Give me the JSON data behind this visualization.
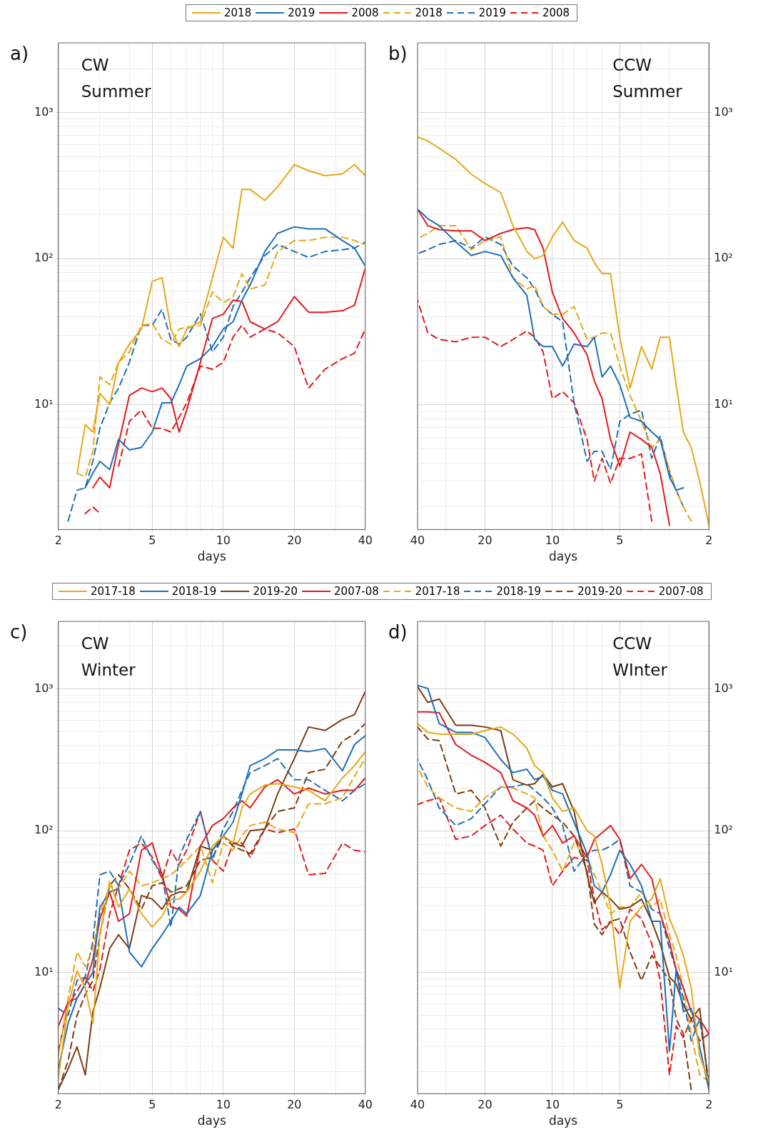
{
  "chart_data": [
    {
      "type": "line",
      "title": "a)",
      "annotations": [
        "CW",
        "Summer"
      ],
      "xlabel": "days",
      "log": "xy",
      "grid": true,
      "legend": "top",
      "x": [
        2.2,
        2.4,
        2.6,
        2.8,
        3,
        3.3,
        3.6,
        4,
        4.5,
        5,
        5.5,
        6,
        6.5,
        7,
        8,
        9,
        10,
        11,
        12,
        13,
        15,
        17,
        20,
        23,
        27,
        32,
        36,
        40
      ],
      "xlim": [
        2,
        40
      ],
      "xticks": [
        2,
        {
          "value": 3,
          "label": null
        },
        {
          "value": 4,
          "label": null
        },
        5,
        {
          "value": 6,
          "label": null
        },
        {
          "value": 7,
          "label": null
        },
        {
          "value": 8,
          "label": null
        },
        {
          "value": 9,
          "label": null
        },
        10,
        20,
        {
          "value": 30,
          "label": null
        },
        40
      ],
      "ylim": [
        1.4,
        3000
      ],
      "yticks": [
        {
          "value": 2,
          "label": null
        },
        {
          "value": 3,
          "label": null
        },
        {
          "value": 4,
          "label": null
        },
        {
          "value": 5,
          "label": null
        },
        {
          "value": 6,
          "label": null
        },
        {
          "value": 7,
          "label": null
        },
        {
          "value": 8,
          "label": null
        },
        {
          "value": 9,
          "label": null
        },
        {
          "value": 10,
          "label": "10¹"
        },
        {
          "value": 20,
          "label": null
        },
        {
          "value": 30,
          "label": null
        },
        {
          "value": 40,
          "label": null
        },
        {
          "value": 50,
          "label": null
        },
        {
          "value": 60,
          "label": null
        },
        {
          "value": 70,
          "label": null
        },
        {
          "value": 80,
          "label": null
        },
        {
          "value": 90,
          "label": null
        },
        {
          "value": 100,
          "label": "10²"
        },
        {
          "value": 200,
          "label": null
        },
        {
          "value": 300,
          "label": null
        },
        {
          "value": 400,
          "label": null
        },
        {
          "value": 500,
          "label": null
        },
        {
          "value": 600,
          "label": null
        },
        {
          "value": 700,
          "label": null
        },
        {
          "value": 800,
          "label": null
        },
        {
          "value": 900,
          "label": null
        },
        {
          "value": 1000,
          "label": "10³"
        },
        {
          "value": 2000,
          "label": null
        }
      ],
      "series": [
        {
          "name": "2018",
          "color": "#e6a817",
          "line_style": "solid",
          "values": [
            null,
            3.4,
            7.3,
            6.5,
            12,
            10,
            19.5,
            26,
            33,
            70,
            74,
            33,
            25,
            33,
            37,
            74,
            140,
            118,
            298,
            298,
            250,
            310,
            440,
            400,
            370,
            380,
            440,
            370
          ]
        },
        {
          "name": "2019",
          "color": "#1f6fb5",
          "line_style": "solid",
          "values": [
            null,
            null,
            2.7,
            3.4,
            4.1,
            3.6,
            5.8,
            4.9,
            5.1,
            6.5,
            10.3,
            10.3,
            13.7,
            18.4,
            20.7,
            25,
            33,
            37,
            52,
            66,
            112,
            149,
            165,
            160,
            160,
            133,
            118,
            89
          ]
        },
        {
          "name": "2008",
          "color": "#e3191c",
          "line_style": "solid",
          "values": [
            null,
            null,
            null,
            2.7,
            3.2,
            2.7,
            5.4,
            11.6,
            13,
            12.3,
            13,
            11,
            6.5,
            9.2,
            19.5,
            39,
            41.6,
            52,
            51,
            37,
            33,
            37,
            55,
            43,
            43,
            44,
            48,
            86
          ]
        },
        {
          "name": "2018",
          "color": "#e6a817",
          "line_style": "dashed",
          "values": [
            null,
            3.4,
            3.2,
            4.8,
            15.5,
            13.7,
            19.5,
            23,
            35,
            36,
            28,
            26,
            33,
            34,
            35,
            59,
            50,
            55,
            79,
            62,
            66,
            112,
            133,
            133,
            140,
            140,
            133,
            125
          ]
        },
        {
          "name": "2019",
          "color": "#1f6fb5",
          "line_style": "dashed",
          "values": [
            1.6,
            2.6,
            2.7,
            4.1,
            6.9,
            10.3,
            13,
            19.5,
            35,
            35,
            45,
            28,
            26,
            29,
            42,
            23,
            29,
            47,
            59,
            74,
            105,
            125,
            112,
            102,
            112,
            115,
            118,
            130
          ]
        },
        {
          "name": "2008",
          "color": "#e3191c",
          "line_style": "dashed",
          "values": [
            null,
            null,
            1.8,
            2.0,
            1.8,
            null,
            3.8,
            7.7,
            9.2,
            6.9,
            6.9,
            6.5,
            8.2,
            10.3,
            18.4,
            17.5,
            19.5,
            29,
            35,
            29,
            33,
            31,
            25,
            13,
            17.5,
            20.7,
            22.5,
            33
          ]
        }
      ]
    },
    {
      "type": "line",
      "title": "b)",
      "annotations": [
        "CCW",
        "Summer"
      ],
      "xlabel": "days",
      "log": "xy",
      "grid": true,
      "x": [
        2,
        2.2,
        2.4,
        2.6,
        2.8,
        3,
        3.3,
        3.6,
        4,
        4.5,
        5,
        5.5,
        6,
        6.5,
        7,
        8,
        9,
        10,
        11,
        12,
        13,
        15,
        17,
        20,
        23,
        27,
        32,
        36,
        40
      ],
      "xlim": [
        40,
        2
      ],
      "xticks": [
        2,
        {
          "value": 3,
          "label": null
        },
        {
          "value": 4,
          "label": null
        },
        5,
        {
          "value": 6,
          "label": null
        },
        {
          "value": 7,
          "label": null
        },
        {
          "value": 8,
          "label": null
        },
        {
          "value": 9,
          "label": null
        },
        10,
        20,
        {
          "value": 30,
          "label": null
        },
        40
      ],
      "ylim": [
        1.4,
        3000
      ],
      "yticks": [
        {
          "value": 2,
          "label": null
        },
        {
          "value": 3,
          "label": null
        },
        {
          "value": 4,
          "label": null
        },
        {
          "value": 5,
          "label": null
        },
        {
          "value": 6,
          "label": null
        },
        {
          "value": 7,
          "label": null
        },
        {
          "value": 8,
          "label": null
        },
        {
          "value": 9,
          "label": null
        },
        {
          "value": 10,
          "label": "10¹"
        },
        {
          "value": 20,
          "label": null
        },
        {
          "value": 30,
          "label": null
        },
        {
          "value": 40,
          "label": null
        },
        {
          "value": 50,
          "label": null
        },
        {
          "value": 60,
          "label": null
        },
        {
          "value": 70,
          "label": null
        },
        {
          "value": 80,
          "label": null
        },
        {
          "value": 90,
          "label": null
        },
        {
          "value": 100,
          "label": "10²"
        },
        {
          "value": 200,
          "label": null
        },
        {
          "value": 300,
          "label": null
        },
        {
          "value": 400,
          "label": null
        },
        {
          "value": 500,
          "label": null
        },
        {
          "value": 600,
          "label": null
        },
        {
          "value": 700,
          "label": null
        },
        {
          "value": 800,
          "label": null
        },
        {
          "value": 900,
          "label": null
        },
        {
          "value": 1000,
          "label": "10³"
        },
        {
          "value": 2000,
          "label": null
        }
      ],
      "series": [
        {
          "name": "2018",
          "color": "#e6a817",
          "line_style": "solid",
          "values": [
            1.5,
            3.0,
            5.1,
            6.5,
            13.7,
            29,
            29,
            17.5,
            25,
            13,
            29,
            79,
            79,
            94,
            118,
            133,
            178,
            141,
            105,
            100,
            112,
            168,
            283,
            327,
            378,
            478,
            570,
            640,
            680
          ]
        },
        {
          "name": "2019",
          "color": "#1f6fb5",
          "line_style": "solid",
          "values": [
            null,
            null,
            null,
            2.7,
            2.6,
            3.2,
            5.8,
            6.5,
            7.7,
            8.2,
            13.7,
            18.4,
            15.5,
            29,
            25,
            26,
            18.4,
            25,
            25,
            28,
            56,
            74,
            105,
            112,
            105,
            130,
            168,
            188,
            218
          ]
        },
        {
          "name": "2008",
          "color": "#e3191c",
          "line_style": "solid",
          "values": [
            null,
            null,
            null,
            null,
            null,
            1.5,
            3.4,
            5.1,
            5.8,
            6.5,
            3.8,
            5.8,
            11,
            14.6,
            22,
            31,
            39,
            59,
            118,
            158,
            163,
            158,
            149,
            133,
            155,
            155,
            158,
            168,
            218
          ]
        },
        {
          "name": "2018",
          "color": "#e6a817",
          "line_style": "dashed",
          "values": [
            null,
            null,
            1.6,
            2.0,
            2.6,
            3.6,
            5.8,
            5.1,
            7.7,
            11.6,
            18.4,
            31,
            31,
            29,
            28,
            47,
            41.6,
            41.6,
            47,
            66,
            62,
            74,
            141,
            133,
            115,
            168,
            168,
            149,
            137
          ]
        },
        {
          "name": "2019",
          "color": "#1f6fb5",
          "line_style": "dashed",
          "values": [
            null,
            null,
            null,
            2.0,
            2.6,
            3.4,
            6.1,
            4.3,
            9.2,
            8.6,
            7.7,
            3.6,
            4.8,
            4.8,
            4.1,
            10.3,
            37,
            41.6,
            47,
            62,
            74,
            89,
            125,
            141,
            118,
            133,
            125,
            115,
            108
          ]
        },
        {
          "name": "2008",
          "color": "#e3191c",
          "line_style": "dashed",
          "values": [
            null,
            null,
            null,
            null,
            null,
            null,
            null,
            1.6,
            4.6,
            4.3,
            4.3,
            2.9,
            4.3,
            3.0,
            5.8,
            10.3,
            12.3,
            11,
            23,
            29,
            32,
            28,
            25,
            29,
            29,
            27,
            28,
            31,
            52
          ]
        }
      ]
    },
    {
      "type": "line",
      "title": "c)",
      "annotations": [
        "CW",
        "Winter"
      ],
      "xlabel": "days",
      "log": "xy",
      "grid": true,
      "legend": "top",
      "x": [
        2,
        2.2,
        2.4,
        2.6,
        2.8,
        3,
        3.3,
        3.6,
        4,
        4.5,
        5,
        5.5,
        6,
        6.5,
        7,
        8,
        9,
        10,
        11,
        12,
        13,
        15,
        17,
        20,
        23,
        27,
        32,
        36,
        40
      ],
      "xlim": [
        2,
        40
      ],
      "xticks": [
        2,
        {
          "value": 3,
          "label": null
        },
        {
          "value": 4,
          "label": null
        },
        5,
        {
          "value": 6,
          "label": null
        },
        {
          "value": 7,
          "label": null
        },
        {
          "value": 8,
          "label": null
        },
        {
          "value": 9,
          "label": null
        },
        10,
        20,
        {
          "value": 30,
          "label": null
        },
        40
      ],
      "ylim": [
        1.4,
        3000
      ],
      "yticks": [
        {
          "value": 2,
          "label": null
        },
        {
          "value": 3,
          "label": null
        },
        {
          "value": 4,
          "label": null
        },
        {
          "value": 5,
          "label": null
        },
        {
          "value": 6,
          "label": null
        },
        {
          "value": 7,
          "label": null
        },
        {
          "value": 8,
          "label": null
        },
        {
          "value": 9,
          "label": null
        },
        {
          "value": 10,
          "label": "10¹"
        },
        {
          "value": 20,
          "label": null
        },
        {
          "value": 30,
          "label": null
        },
        {
          "value": 40,
          "label": null
        },
        {
          "value": 50,
          "label": null
        },
        {
          "value": 60,
          "label": null
        },
        {
          "value": 70,
          "label": null
        },
        {
          "value": 80,
          "label": null
        },
        {
          "value": 90,
          "label": null
        },
        {
          "value": 100,
          "label": "10²"
        },
        {
          "value": 200,
          "label": null
        },
        {
          "value": 300,
          "label": null
        },
        {
          "value": 400,
          "label": null
        },
        {
          "value": 500,
          "label": null
        },
        {
          "value": 600,
          "label": null
        },
        {
          "value": 700,
          "label": null
        },
        {
          "value": 800,
          "label": null
        },
        {
          "value": 900,
          "label": null
        },
        {
          "value": 1000,
          "label": "10³"
        },
        {
          "value": 2000,
          "label": null
        }
      ],
      "series": [
        {
          "name": "2017-18",
          "color": "#e6a817",
          "line_style": "solid",
          "values": [
            1.8,
            5.9,
            10.3,
            7.8,
            4.4,
            18.5,
            44,
            29,
            39,
            26,
            21,
            25,
            33,
            33,
            37,
            52,
            78,
            92,
            82,
            145,
            182,
            210,
            215,
            204,
            193,
            163,
            236,
            288,
            362
          ]
        },
        {
          "name": "2018-19",
          "color": "#1f6fb5",
          "line_style": "solid",
          "values": [
            2.1,
            4.4,
            6.6,
            8.3,
            10,
            29,
            37,
            39,
            14,
            11,
            14.8,
            18.5,
            23,
            29,
            26,
            35,
            73,
            92,
            115,
            182,
            288,
            323,
            372,
            372,
            362,
            380,
            265,
            406,
            469
          ]
        },
        {
          "name": "2019-20",
          "color": "#7b3c12",
          "line_style": "solid",
          "values": [
            1.5,
            2.1,
            3.0,
            1.9,
            5.3,
            7.8,
            14.8,
            18.5,
            14.8,
            35,
            33,
            28,
            35,
            37,
            37,
            78,
            73,
            92,
            82,
            78,
            100,
            103,
            182,
            323,
            540,
            510,
            610,
            660,
            960
          ]
        },
        {
          "name": "2007-08",
          "color": "#e3191c",
          "line_style": "solid",
          "values": [
            4.2,
            6.2,
            6.6,
            8.3,
            12.4,
            24,
            37,
            23,
            26,
            73,
            82,
            49,
            29,
            28,
            25,
            78,
            109,
            122,
            145,
            163,
            145,
            204,
            229,
            182,
            200,
            182,
            193,
            193,
            236
          ]
        },
        {
          "name": "2017-18",
          "color": "#e6a817",
          "line_style": "dashed",
          "values": [
            2.6,
            6.6,
            14,
            11,
            14.8,
            26,
            41,
            39,
            52,
            41,
            43,
            46,
            49,
            55,
            62,
            78,
            43,
            82,
            73,
            92,
            109,
            115,
            103,
            97,
            155,
            155,
            171,
            243,
            323
          ]
        },
        {
          "name": "2018-19",
          "color": "#1f6fb5",
          "line_style": "dashed",
          "values": [
            5.6,
            5.0,
            8.8,
            9.3,
            16.5,
            49,
            52,
            41,
            58,
            92,
            62,
            49,
            21,
            65,
            87,
            137,
            62,
            103,
            137,
            193,
            257,
            288,
            323,
            229,
            229,
            193,
            163,
            193,
            215
          ]
        },
        {
          "name": "2019-20",
          "color": "#7b3c12",
          "line_style": "dashed",
          "values": [
            1.5,
            2.4,
            5.0,
            7.0,
            8.8,
            18.5,
            41,
            49,
            39,
            28,
            41,
            43,
            37,
            39,
            41,
            62,
            65,
            92,
            78,
            73,
            69,
            103,
            137,
            145,
            257,
            272,
            430,
            480,
            571
          ]
        },
        {
          "name": "2007-08",
          "color": "#e3191c",
          "line_style": "dashed",
          "values": [
            2.8,
            5.9,
            7.4,
            9.3,
            7.4,
            10.5,
            26,
            41,
            73,
            82,
            65,
            46,
            73,
            58,
            73,
            137,
            62,
            52,
            82,
            82,
            65,
            103,
            97,
            103,
            49,
            50,
            82,
            73,
            71
          ]
        }
      ]
    },
    {
      "type": "line",
      "title": "d)",
      "annotations": [
        "CCW",
        "WInter"
      ],
      "xlabel": "days",
      "log": "xy",
      "grid": true,
      "x": [
        2,
        2.2,
        2.4,
        2.6,
        2.8,
        3,
        3.3,
        3.6,
        4,
        4.5,
        5,
        5.5,
        6,
        6.5,
        7,
        8,
        9,
        10,
        11,
        12,
        13,
        15,
        17,
        20,
        23,
        27,
        32,
        36,
        40
      ],
      "xlim": [
        40,
        2
      ],
      "xticks": [
        2,
        {
          "value": 3,
          "label": null
        },
        {
          "value": 4,
          "label": null
        },
        5,
        {
          "value": 6,
          "label": null
        },
        {
          "value": 7,
          "label": null
        },
        {
          "value": 8,
          "label": null
        },
        {
          "value": 9,
          "label": null
        },
        10,
        20,
        {
          "value": 30,
          "label": null
        },
        40
      ],
      "ylim": [
        1.4,
        3000
      ],
      "yticks": [
        {
          "value": 2,
          "label": null
        },
        {
          "value": 3,
          "label": null
        },
        {
          "value": 4,
          "label": null
        },
        {
          "value": 5,
          "label": null
        },
        {
          "value": 6,
          "label": null
        },
        {
          "value": 7,
          "label": null
        },
        {
          "value": 8,
          "label": null
        },
        {
          "value": 9,
          "label": null
        },
        {
          "value": 10,
          "label": "10¹"
        },
        {
          "value": 20,
          "label": null
        },
        {
          "value": 30,
          "label": null
        },
        {
          "value": 40,
          "label": null
        },
        {
          "value": 50,
          "label": null
        },
        {
          "value": 60,
          "label": null
        },
        {
          "value": 70,
          "label": null
        },
        {
          "value": 80,
          "label": null
        },
        {
          "value": 90,
          "label": null
        },
        {
          "value": 100,
          "label": "10²"
        },
        {
          "value": 200,
          "label": null
        },
        {
          "value": 300,
          "label": null
        },
        {
          "value": 400,
          "label": null
        },
        {
          "value": 500,
          "label": null
        },
        {
          "value": 600,
          "label": null
        },
        {
          "value": 700,
          "label": null
        },
        {
          "value": 800,
          "label": null
        },
        {
          "value": 900,
          "label": null
        },
        {
          "value": 1000,
          "label": "10³"
        },
        {
          "value": 2000,
          "label": null
        }
      ],
      "series": [
        {
          "name": "2017-18",
          "color": "#e6a817",
          "line_style": "solid",
          "values": [
            1.7,
            2.6,
            7.8,
            13.2,
            18.5,
            24,
            46,
            33,
            29,
            23,
            7.8,
            29,
            58,
            92,
            100,
            145,
            137,
            171,
            257,
            288,
            383,
            480,
            540,
            509,
            480,
            480,
            480,
            495,
            571
          ]
        },
        {
          "name": "2018-19",
          "color": "#1f6fb5",
          "line_style": "solid",
          "values": [
            1.5,
            3.0,
            5.6,
            5.3,
            10.5,
            2.8,
            23,
            23,
            41,
            58,
            73,
            49,
            37,
            41,
            69,
            115,
            182,
            193,
            243,
            229,
            272,
            257,
            318,
            455,
            495,
            495,
            571,
            1010,
            1060
          ]
        },
        {
          "name": "2019-20",
          "color": "#7b3c12",
          "line_style": "solid",
          "values": [
            1.5,
            5.6,
            4.7,
            5.9,
            8.3,
            9.3,
            16,
            23,
            33,
            29,
            28,
            33,
            37,
            31,
            49,
            137,
            215,
            204,
            250,
            215,
            210,
            229,
            509,
            540,
            555,
            555,
            850,
            805,
            1040
          ]
        },
        {
          "name": "2007-08",
          "color": "#e3191c",
          "line_style": "solid",
          "values": [
            3.7,
            4.7,
            5.3,
            7.8,
            10.5,
            16.5,
            26,
            46,
            58,
            46,
            87,
            109,
            97,
            87,
            65,
            92,
            82,
            109,
            92,
            129,
            145,
            163,
            257,
            304,
            341,
            406,
            680,
            690,
            690
          ]
        },
        {
          "name": "2017-18",
          "color": "#e6a817",
          "line_style": "dashed",
          "values": [
            1.7,
            1.9,
            3.7,
            7.8,
            13.2,
            18.5,
            33,
            29,
            37,
            29,
            29,
            26,
            37,
            49,
            65,
            82,
            52,
            73,
            92,
            171,
            182,
            200,
            204,
            171,
            137,
            145,
            171,
            204,
            280
          ]
        },
        {
          "name": "2018-19",
          "color": "#1f6fb5",
          "line_style": "dashed",
          "values": [
            1.7,
            4.7,
            3.3,
            6.6,
            10.5,
            14.8,
            26,
            28,
            37,
            41,
            87,
            78,
            73,
            73,
            69,
            52,
            109,
            145,
            171,
            193,
            215,
            204,
            204,
            155,
            122,
            109,
            145,
            229,
            318
          ]
        },
        {
          "name": "2019-20",
          "color": "#7b3c12",
          "line_style": "dashed",
          "values": [
            null,
            null,
            1.5,
            3.7,
            4.7,
            8.8,
            11,
            13.2,
            8.8,
            14,
            24,
            23,
            18.5,
            22,
            52,
            92,
            115,
            129,
            145,
            163,
            145,
            115,
            78,
            145,
            193,
            182,
            432,
            444,
            540
          ]
        },
        {
          "name": "2007-08",
          "color": "#e3191c",
          "line_style": "dashed",
          "values": [
            3.7,
            3.3,
            4.7,
            3.5,
            4.2,
            1.9,
            8.8,
            16,
            24,
            28,
            18.5,
            23,
            20,
            33,
            62,
            65,
            52,
            41,
            73,
            78,
            82,
            103,
            129,
            109,
            92,
            87,
            171,
            163,
            153
          ]
        }
      ]
    }
  ]
}
